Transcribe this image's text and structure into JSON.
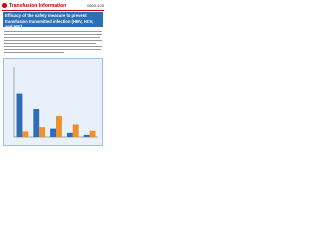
{
  "header": {
    "title": "Transfusion Information",
    "issue": "0809-105"
  },
  "document": {
    "title": "Efficacy of the safety measure to prevent transfusion transmitted infection (HBV, HCV, and HIV)"
  },
  "chart_data": {
    "type": "bar",
    "categories": [
      null,
      null,
      null,
      null,
      null
    ],
    "series": [
      {
        "color": "#2f6db6",
        "values": [
          62,
          40,
          12,
          6,
          3
        ]
      },
      {
        "color": "#f0902a",
        "values": [
          8,
          14,
          30,
          18,
          9
        ]
      }
    ],
    "ylim": [
      0,
      100
    ]
  }
}
